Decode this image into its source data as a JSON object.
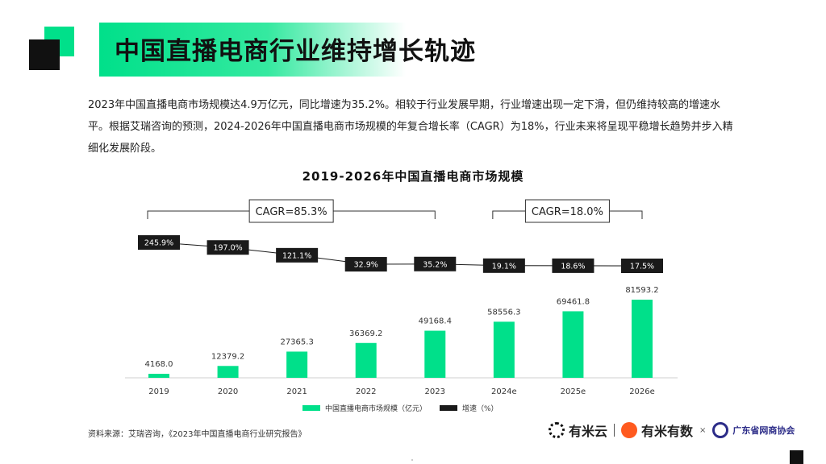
{
  "page": {
    "title": "中国直播电商行业维持增长轨迹",
    "summary": "2023年中国直播电商市场规模达4.9万亿元，同比增速为35.2%。相较于行业发展早期，行业增速出现一定下滑，但仍维持较高的增速水平。根据艾瑞咨询的预测，2024-2026年中国直播电商市场规模的年复合增长率（CAGR）为18%，行业未来将呈现平稳增长趋势并步入精细化发展阶段。",
    "source": "资料来源：艾瑞咨询，《2023年中国直播电商行业研究报告》"
  },
  "logos": {
    "logo1": "有米云",
    "logo2": "有米有数",
    "separator_x": "×",
    "logo3": "广东省网商协会"
  },
  "colors": {
    "bar": "#00e08a",
    "line": "#1a1a1a",
    "accent": "#00e08a"
  },
  "chart_data": {
    "type": "bar",
    "title": "2019-2026年中国直播电商市场规模",
    "categories": [
      "2019",
      "2020",
      "2021",
      "2022",
      "2023",
      "2024e",
      "2025e",
      "2026e"
    ],
    "series": [
      {
        "name": "中国直播电商市场规模（亿元）",
        "type": "bar",
        "values": [
          4168.0,
          12379.2,
          27365.3,
          36369.2,
          49168.4,
          58556.3,
          69461.8,
          81593.2
        ],
        "labels": [
          "4168.0",
          "12379.2",
          "27365.3",
          "36369.2",
          "49168.4",
          "58556.3",
          "69461.8",
          "81593.2"
        ]
      },
      {
        "name": "增速（%）",
        "type": "line",
        "values": [
          245.9,
          197.0,
          121.1,
          32.9,
          35.2,
          19.1,
          18.6,
          17.5
        ],
        "labels": [
          "245.9%",
          "197.0%",
          "121.1%",
          "32.9%",
          "35.2%",
          "19.1%",
          "18.6%",
          "17.5%"
        ]
      }
    ],
    "annotations": [
      {
        "text": "CAGR=85.3%",
        "from": "2019",
        "to": "2023"
      },
      {
        "text": "CAGR=18.0%",
        "from": "2024e",
        "to": "2026e"
      }
    ],
    "legend": "bottom",
    "grid": false
  }
}
